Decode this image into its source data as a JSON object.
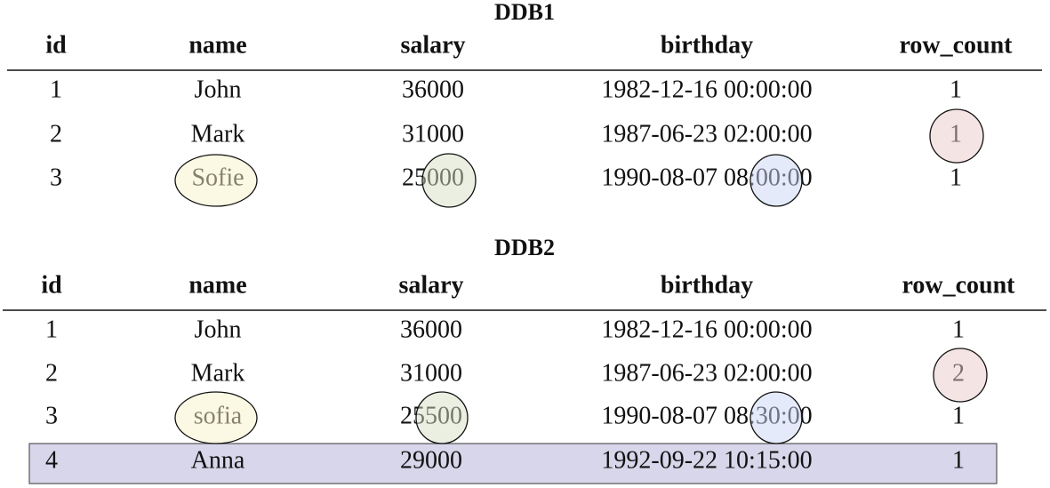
{
  "tables": [
    {
      "title": "DDB1",
      "columns": [
        "id",
        "name",
        "salary",
        "birthday",
        "row_count"
      ],
      "rows": [
        [
          "1",
          "John",
          "36000",
          "1982-12-16 00:00:00",
          "1"
        ],
        [
          "2",
          "Mark",
          "31000",
          "1987-06-23 02:00:00",
          "1"
        ],
        [
          "3",
          "Sofie",
          "25000",
          "1990-08-07 08:00:00",
          "1"
        ]
      ]
    },
    {
      "title": "DDB2",
      "columns": [
        "id",
        "name",
        "salary",
        "birthday",
        "row_count"
      ],
      "rows": [
        [
          "1",
          "John",
          "36000",
          "1982-12-16 00:00:00",
          "1"
        ],
        [
          "2",
          "Mark",
          "31000",
          "1987-06-23 02:00:00",
          "2"
        ],
        [
          "3",
          "sofia",
          "25500",
          "1990-08-07 08:30:00",
          "1"
        ],
        [
          "4",
          "Anna",
          "29000",
          "1992-09-22 10:15:00",
          "1"
        ]
      ]
    }
  ]
}
